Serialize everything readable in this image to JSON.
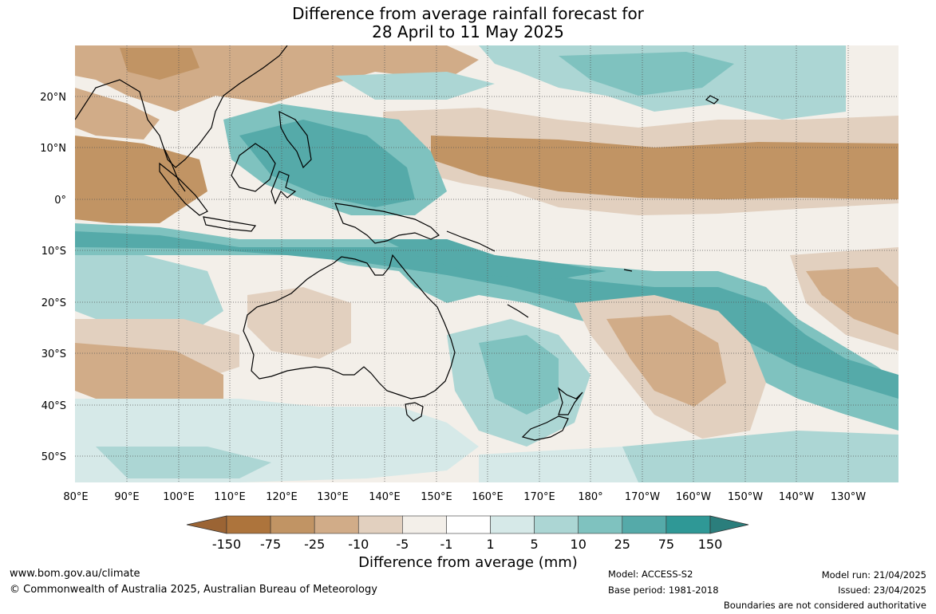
{
  "title_line1": "Difference from average rainfall forecast for",
  "title_line2": "28 April to 11 May 2025",
  "lat_labels": [
    "20°N",
    "10°N",
    "0°",
    "10°S",
    "20°S",
    "30°S",
    "40°S",
    "50°S"
  ],
  "lon_labels": [
    "80°E",
    "90°E",
    "100°E",
    "110°E",
    "120°E",
    "130°E",
    "140°E",
    "150°E",
    "160°E",
    "170°E",
    "180°",
    "170°W",
    "160°W",
    "150°W",
    "140°W",
    "130°W"
  ],
  "colorbar": {
    "title": "Difference from average (mm)",
    "ticks": [
      "-150",
      "-75",
      "-25",
      "-10",
      "-5",
      "-1",
      "1",
      "5",
      "10",
      "25",
      "75",
      "150"
    ],
    "colors": [
      "#9b6434",
      "#ad743c",
      "#c19464",
      "#d1ac88",
      "#e2d0bf",
      "#f3efe9",
      "#ffffff",
      "#d6e9e8",
      "#acd6d4",
      "#7fc2bf",
      "#55aaa9",
      "#2f9896",
      "#2b7e7c"
    ]
  },
  "footer": {
    "website": "www.bom.gov.au/climate",
    "copyright": "© Commonwealth of Australia 2025, Australian Bureau of Meteorology",
    "model": "Model: ACCESS-S2",
    "base_period": "Base period: 1981-2018",
    "model_run": "Model run: 21/04/2025",
    "issued": "Issued: 23/04/2025",
    "boundaries": "Boundaries are not considered authoritative"
  }
}
